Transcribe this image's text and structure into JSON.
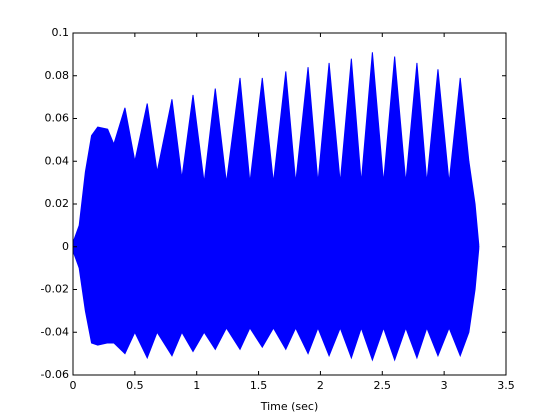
{
  "chart_data": {
    "type": "area",
    "xlabel": "Time (sec)",
    "x": [
      0,
      0.05,
      0.1,
      0.15,
      0.2,
      0.28,
      0.33,
      0.42,
      0.5,
      0.6,
      0.68,
      0.8,
      0.88,
      0.97,
      1.06,
      1.15,
      1.24,
      1.35,
      1.43,
      1.53,
      1.62,
      1.72,
      1.8,
      1.9,
      1.98,
      2.07,
      2.16,
      2.25,
      2.33,
      2.42,
      2.51,
      2.6,
      2.69,
      2.78,
      2.86,
      2.95,
      3.04,
      3.13,
      3.2,
      3.25,
      3.28
    ],
    "series": [
      {
        "color": "#0000ff",
        "values": [
          0.002,
          0.01,
          0.035,
          0.052,
          0.056,
          0.055,
          0.048,
          0.065,
          0.04,
          0.067,
          0.035,
          0.069,
          0.032,
          0.071,
          0.03,
          0.074,
          0.03,
          0.079,
          0.03,
          0.079,
          0.03,
          0.082,
          0.03,
          0.084,
          0.03,
          0.086,
          0.03,
          0.088,
          0.03,
          0.091,
          0.03,
          0.089,
          0.03,
          0.086,
          0.03,
          0.083,
          0.03,
          0.079,
          0.04,
          0.02,
          0.001
        ]
      },
      {
        "color": "#0000ff",
        "values": [
          -0.002,
          -0.01,
          -0.03,
          -0.045,
          -0.046,
          -0.045,
          -0.045,
          -0.05,
          -0.04,
          -0.052,
          -0.04,
          -0.051,
          -0.04,
          -0.049,
          -0.04,
          -0.048,
          -0.038,
          -0.048,
          -0.038,
          -0.047,
          -0.038,
          -0.048,
          -0.038,
          -0.05,
          -0.038,
          -0.051,
          -0.038,
          -0.052,
          -0.038,
          -0.053,
          -0.038,
          -0.053,
          -0.038,
          -0.052,
          -0.038,
          -0.051,
          -0.038,
          -0.051,
          -0.04,
          -0.02,
          -0.001
        ]
      }
    ],
    "xlim": [
      0,
      3.5
    ],
    "xticks": [
      0,
      0.5,
      1,
      1.5,
      2,
      2.5,
      3,
      3.5
    ],
    "ylim": [
      -0.06,
      0.1
    ],
    "yticks": [
      -0.06,
      -0.04,
      -0.02,
      0,
      0.02,
      0.04,
      0.06,
      0.08,
      0.1
    ]
  }
}
